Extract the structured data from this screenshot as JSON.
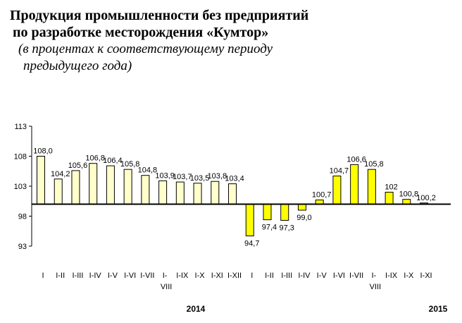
{
  "header": {
    "title_line1": "Продукция промышленности без предприятий",
    "title_line2": "по разработке месторождения «Кумтор»",
    "subtitle_line1": "(в процентах к соответствующему периоду",
    "subtitle_line2": "предыдущего года)"
  },
  "chart_data": {
    "type": "bar",
    "title": "Продукция промышленности без предприятий по разработке месторождения «Кумтор»",
    "subtitle": "(в процентах к соответствующему периоду предыдущего года)",
    "baseline": 100,
    "ylim": [
      93,
      113
    ],
    "yticks": [
      93,
      98,
      103,
      108,
      113
    ],
    "ytick_labels": [
      "93",
      "98",
      "103",
      "108",
      "113"
    ],
    "categories": [
      "I",
      "I-II",
      "I-III",
      "I-IV",
      "I-V",
      "I-VI",
      "I-VII",
      "I-VIII",
      "I-IX",
      "I-X",
      "I-XI",
      "I-XII",
      "I",
      "I-II",
      "I-III",
      "I-IV",
      "I-V",
      "I-VI",
      "I-VII",
      "I-VIII",
      "I-IX",
      "I-X",
      "I-XI"
    ],
    "category_line1": [
      "I",
      "I-II",
      "I-III",
      "I-IV",
      "I-V",
      "I-VI",
      "I-VII",
      "I-",
      "I-IX",
      "I-X",
      "I-XI",
      "I-XII",
      "I",
      "I-II",
      "I-III",
      "I-IV",
      "I-V",
      "I-VI",
      "I-VII",
      "I-",
      "I-IX",
      "I-X",
      "I-XI"
    ],
    "category_line2": [
      "",
      "",
      "",
      "",
      "",
      "",
      "",
      "VIII",
      "",
      "",
      "",
      "",
      "",
      "",
      "",
      "",
      "",
      "",
      "",
      "VIII",
      "",
      "",
      ""
    ],
    "values": [
      108.0,
      104.2,
      105.6,
      106.8,
      106.4,
      105.8,
      104.8,
      103.9,
      103.7,
      103.5,
      103.8,
      103.4,
      94.7,
      97.4,
      97.3,
      99.0,
      100.7,
      104.7,
      106.6,
      105.8,
      102.0,
      100.8,
      100.2
    ],
    "value_labels": [
      "108,0",
      "104,2",
      "105,6",
      "106,8",
      "106,4",
      "105,8",
      "104,8",
      "103,9",
      "103,7",
      "103,5",
      "103,8",
      "103,4",
      "94,7",
      "97,4",
      "97,3",
      "99,0",
      "100,7",
      "104,7",
      "106,6",
      "105,8",
      "102",
      "100,8",
      "100,2"
    ],
    "series_year": [
      2014,
      2014,
      2014,
      2014,
      2014,
      2014,
      2014,
      2014,
      2014,
      2014,
      2014,
      2014,
      2015,
      2015,
      2015,
      2015,
      2015,
      2015,
      2015,
      2015,
      2015,
      2015,
      2015
    ],
    "years": [
      "2014",
      "2015"
    ],
    "colors": {
      "2014": "#ffffcc",
      "2015": "#ffff00",
      "outline": "#000000"
    },
    "xlabel": "",
    "ylabel": "",
    "grid": false
  }
}
